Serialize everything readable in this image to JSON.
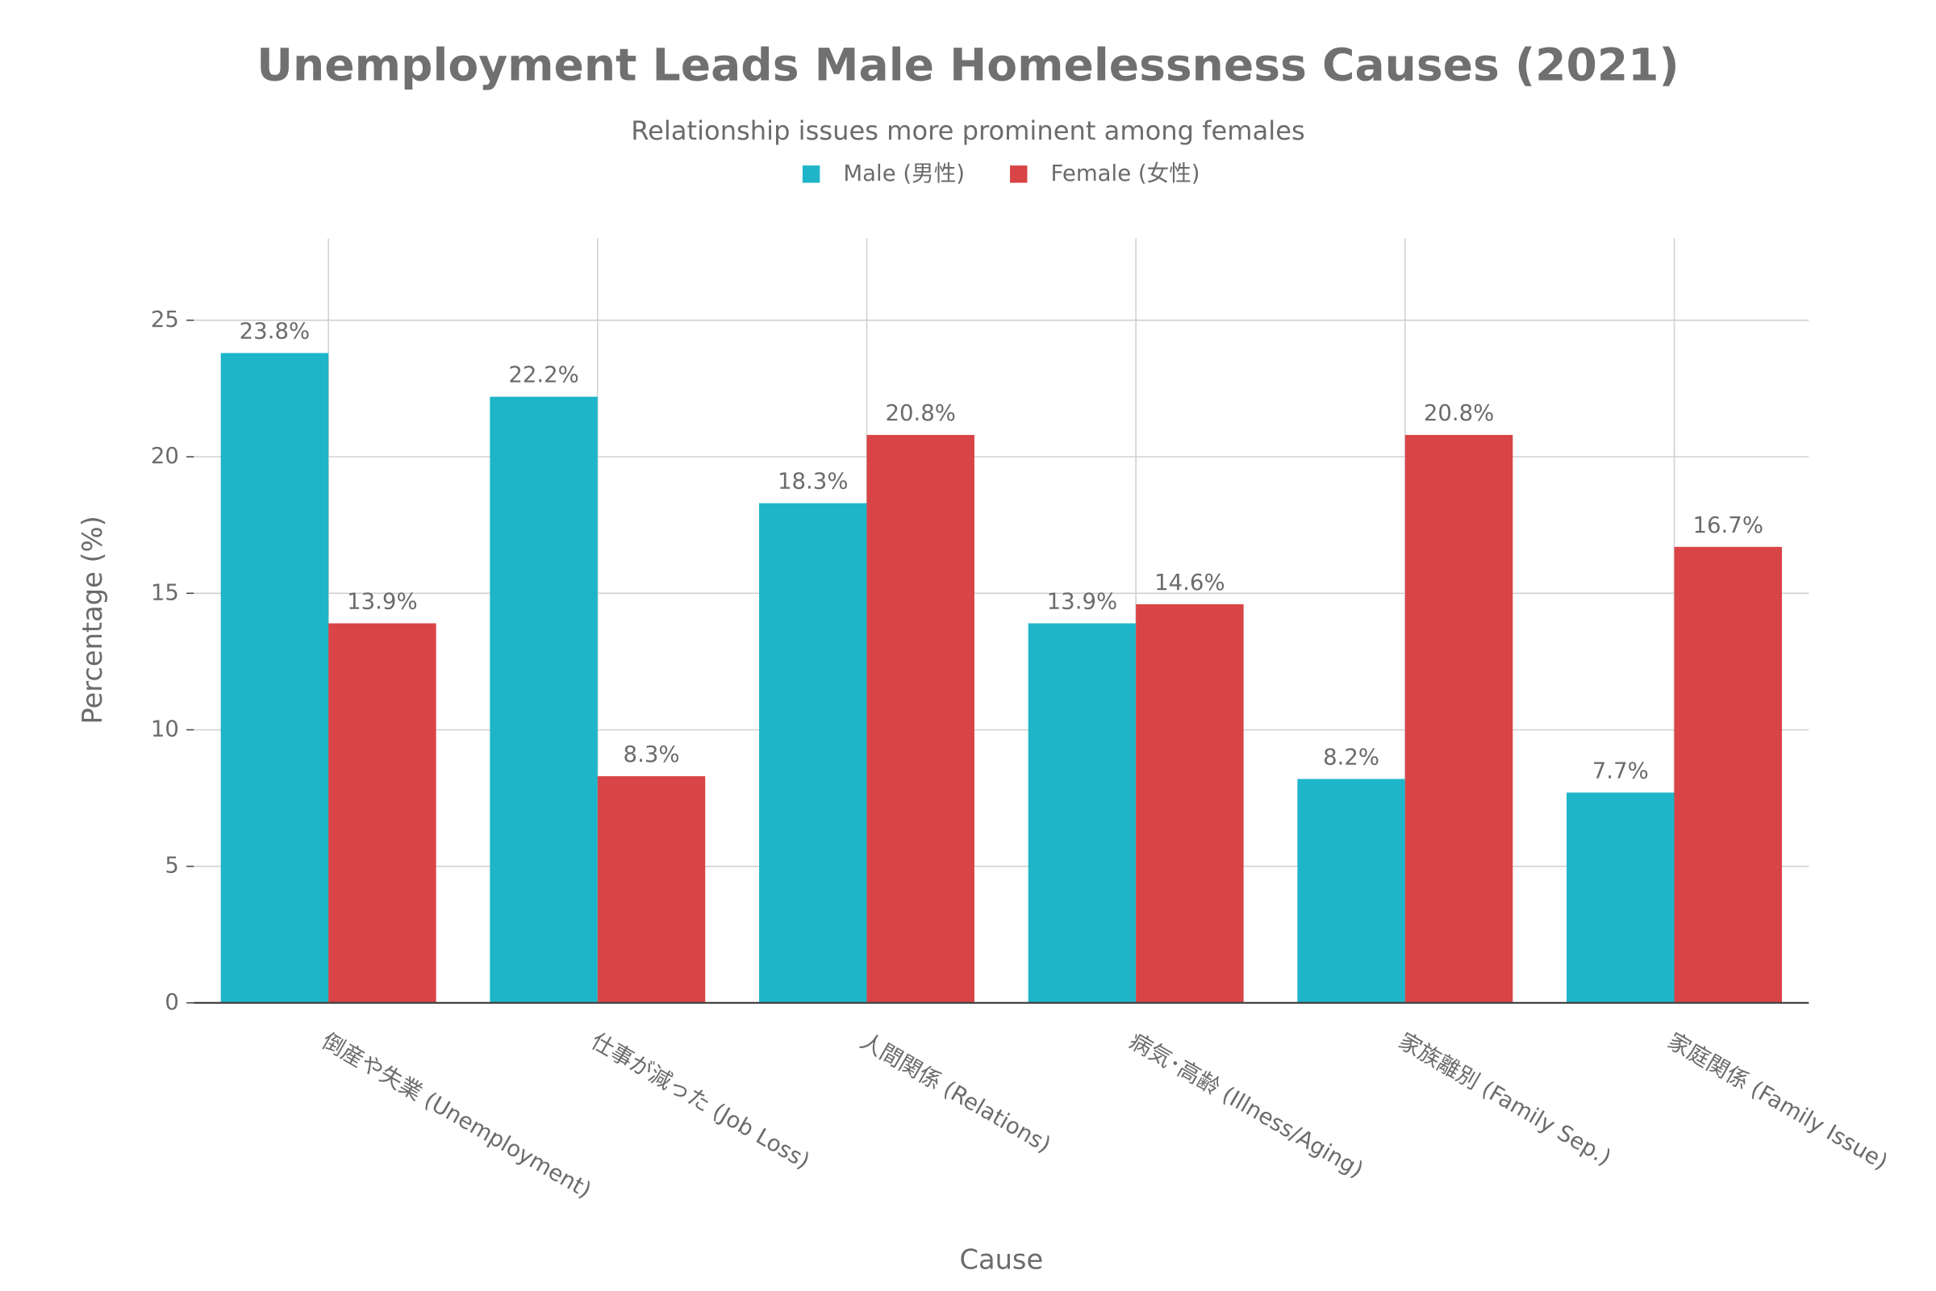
{
  "chart_data": {
    "type": "bar",
    "title": "Unemployment Leads Male Homelessness Causes (2021)",
    "subtitle": "Relationship issues more prominent among females",
    "x_label": "Cause",
    "y_label": "Percentage (%)",
    "categories": [
      "倒産や失業 (Unemployment)",
      "仕事が減った (Job Loss)",
      "人間関係 (Relations)",
      "病気･高齢 (Illness/Aging)",
      "家族離別 (Family Sep.)",
      "家庭関係 (Family Issue)"
    ],
    "series": [
      {
        "name": "Male (男性)",
        "color": "#1fb5c9",
        "values": [
          23.8,
          22.2,
          18.3,
          13.9,
          8.2,
          7.7
        ],
        "value_labels": [
          "23.8%",
          "22.2%",
          "18.3%",
          "13.9%",
          "8.2%",
          "7.7%"
        ]
      },
      {
        "name": "Female (女性)",
        "color": "#d94446",
        "values": [
          13.9,
          8.3,
          20.8,
          14.6,
          20.8,
          16.7
        ],
        "value_labels": [
          "13.9%",
          "8.3%",
          "20.8%",
          "14.6%",
          "20.8%",
          "16.7%"
        ]
      }
    ],
    "ylim": [
      0,
      28
    ],
    "yticks": [
      0,
      5,
      10,
      15,
      20,
      25
    ],
    "grid": true,
    "legend": "top"
  }
}
